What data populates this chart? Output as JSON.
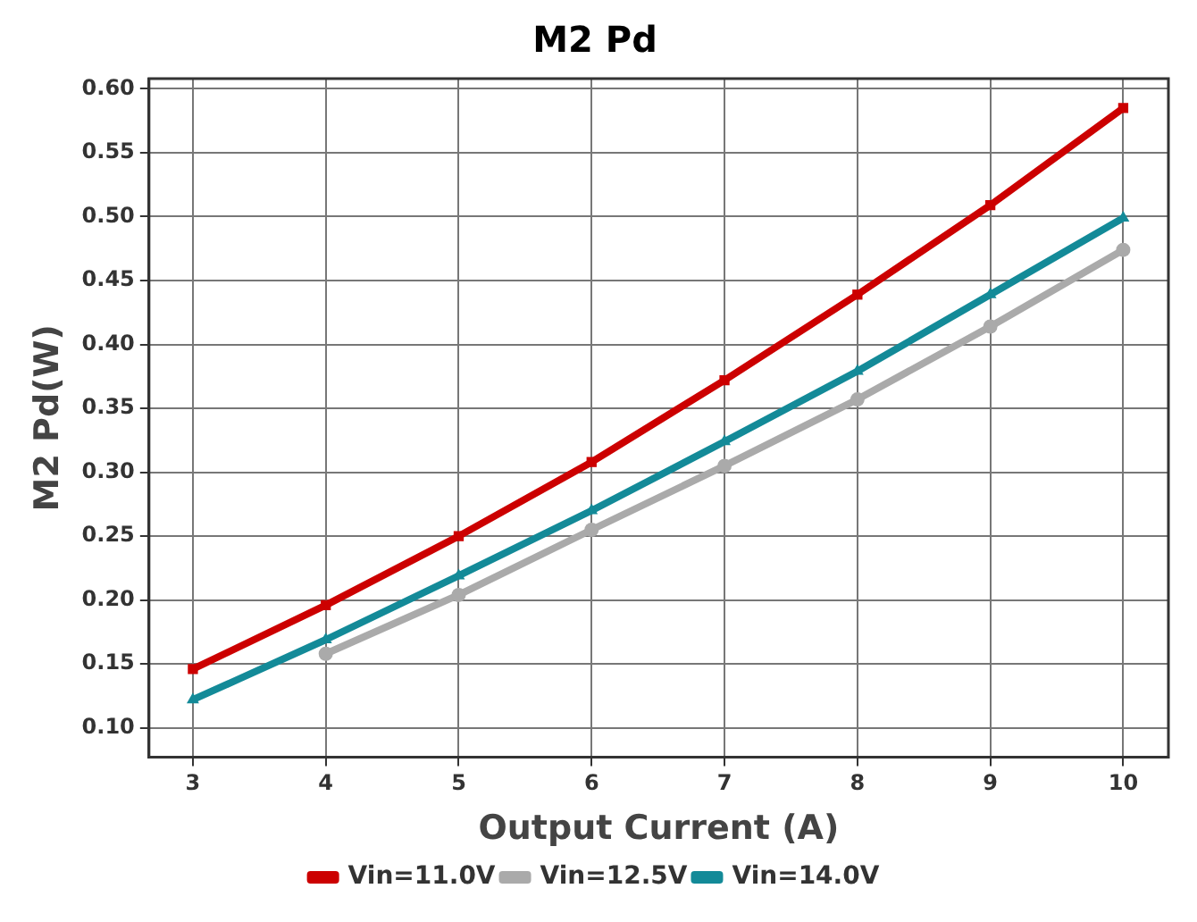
{
  "chart_data": {
    "type": "line",
    "title": "M2 Pd",
    "xlabel": "Output Current (A)",
    "ylabel": "M2 Pd(W)",
    "x": [
      3,
      4,
      5,
      6,
      7,
      8,
      9,
      10
    ],
    "series": [
      {
        "name": "Vin=11.0V",
        "color": "#cc0000",
        "marker": "square",
        "values": [
          0.146,
          0.196,
          0.25,
          0.308,
          0.372,
          0.439,
          0.509,
          0.585
        ]
      },
      {
        "name": "Vin=12.5V",
        "color": "#aaaaaa",
        "marker": "circle",
        "values": [
          null,
          0.158,
          0.204,
          0.255,
          0.305,
          0.357,
          0.414,
          0.474
        ]
      },
      {
        "name": "Vin=14.0V",
        "color": "#138a98",
        "marker": "triangle",
        "values": [
          0.122,
          0.169,
          0.219,
          0.27,
          0.324,
          0.379,
          0.439,
          0.499
        ]
      }
    ],
    "xlim": [
      2.67,
      10.34
    ],
    "xticks": [
      3,
      4,
      5,
      6,
      7,
      8,
      9,
      10
    ],
    "ylim": [
      0.077,
      0.608
    ],
    "yticks": [
      {
        "value": 0.1,
        "label": "0.10"
      },
      {
        "value": 0.15,
        "label": "0.15"
      },
      {
        "value": 0.2,
        "label": "0.20"
      },
      {
        "value": 0.25,
        "label": "0.25"
      },
      {
        "value": 0.3,
        "label": "0.30"
      },
      {
        "value": 0.35,
        "label": "0.35"
      },
      {
        "value": 0.4,
        "label": "0.40"
      },
      {
        "value": 0.45,
        "label": "0.45"
      },
      {
        "value": 0.5,
        "label": "0.50"
      },
      {
        "value": 0.55,
        "label": "0.55"
      },
      {
        "value": 0.6,
        "label": "0.60"
      }
    ],
    "grid": true,
    "legend": "bottom",
    "line_style": "solid"
  }
}
